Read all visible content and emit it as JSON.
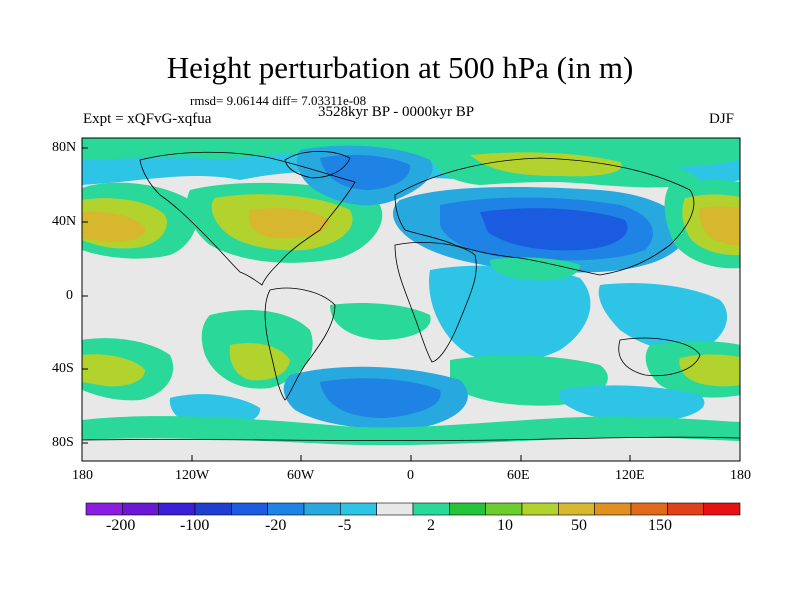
{
  "title": "Height perturbation at 500 hPa (in m)",
  "stats": "rmsd= 9.06144  diff= 7.03311e-08",
  "experiment": "Expt = xQFvG-xqfua",
  "period": "3528kyr BP - 0000kyr BP",
  "season": "DJF",
  "lat_labels": [
    "80N",
    "40N",
    "0",
    "40S",
    "80S"
  ],
  "lon_labels": [
    "180",
    "120W",
    "60W",
    "0",
    "60E",
    "120E",
    "180"
  ],
  "colorbar": {
    "colors": [
      "#8b1ce0",
      "#6a17d6",
      "#3a1fd6",
      "#1e3fcf",
      "#1a5be0",
      "#1f82e5",
      "#27a8de",
      "#2ec4e6",
      "#e8e8e8",
      "#2ad89a",
      "#24c43a",
      "#6ccd2e",
      "#b2d22e",
      "#d6b72e",
      "#e0901e",
      "#e06a1a",
      "#e0401a",
      "#e81010"
    ],
    "labels": [
      "-200",
      "-100",
      "-20",
      "-5",
      "2",
      "10",
      "50",
      "150"
    ]
  }
}
